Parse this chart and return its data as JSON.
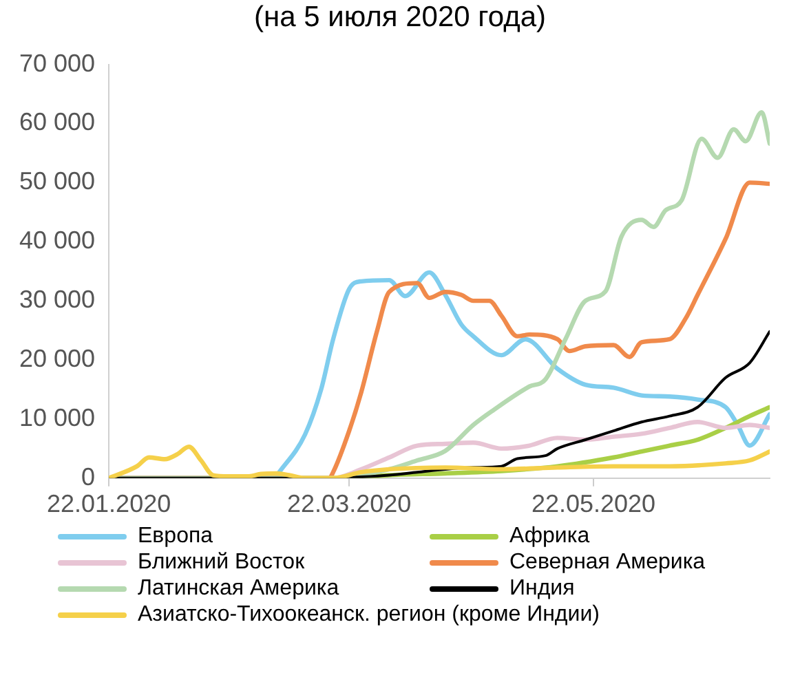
{
  "chart_data": {
    "type": "line",
    "title": "(на 5 июля 2020 года)",
    "xlim": [
      "2020-01-22",
      "2020-07-05"
    ],
    "xticks": [
      {
        "value": "2020-01-22",
        "label": "22.01.2020"
      },
      {
        "value": "2020-03-22",
        "label": "22.03.2020"
      },
      {
        "value": "2020-05-22",
        "label": "22.05.2020"
      }
    ],
    "ylim": [
      0,
      70000
    ],
    "yticks": [
      {
        "value": 0,
        "label": "0"
      },
      {
        "value": 10000,
        "label": "10 000"
      },
      {
        "value": 20000,
        "label": "20 000"
      },
      {
        "value": 30000,
        "label": "30 000"
      },
      {
        "value": 40000,
        "label": "40 000"
      },
      {
        "value": 50000,
        "label": "50 000"
      },
      {
        "value": 60000,
        "label": "60 000"
      },
      {
        "value": 70000,
        "label": "70 000"
      }
    ],
    "grid": false,
    "legend": "bottom",
    "marker": "none",
    "line_style": "solid",
    "series": [
      {
        "name": "Европа",
        "color": "#7fcdee",
        "x": [
          "2020-03-04",
          "2020-03-11",
          "2020-03-15",
          "2020-03-18",
          "2020-03-22",
          "2020-03-25",
          "2020-04-01",
          "2020-04-05",
          "2020-04-11",
          "2020-04-15",
          "2020-04-19",
          "2020-04-22",
          "2020-04-29",
          "2020-05-05",
          "2020-05-13",
          "2020-05-20",
          "2020-05-27",
          "2020-06-03",
          "2020-06-10",
          "2020-06-17",
          "2020-06-24",
          "2020-06-27",
          "2020-06-30",
          "2020-07-05"
        ],
        "values": [
          500,
          7400,
          15000,
          23500,
          32000,
          33300,
          33500,
          30800,
          34800,
          31000,
          26000,
          24000,
          20800,
          23500,
          18500,
          15800,
          15300,
          14000,
          13800,
          13300,
          12000,
          9000,
          5500,
          10800
        ]
      },
      {
        "name": "Африка",
        "color": "#a9cf46",
        "x": [
          "2020-01-22",
          "2020-03-22",
          "2020-04-01",
          "2020-04-15",
          "2020-04-29",
          "2020-05-13",
          "2020-05-27",
          "2020-06-03",
          "2020-06-10",
          "2020-06-17",
          "2020-06-24",
          "2020-06-30",
          "2020-07-05"
        ],
        "values": [
          0,
          0,
          500,
          800,
          1200,
          2000,
          3500,
          4500,
          5500,
          6500,
          8500,
          10500,
          12000
        ]
      },
      {
        "name": "Ближний Восток",
        "color": "#e8c4d4",
        "x": [
          "2020-01-22",
          "2020-03-18",
          "2020-03-25",
          "2020-04-01",
          "2020-04-08",
          "2020-04-15",
          "2020-04-22",
          "2020-04-29",
          "2020-05-06",
          "2020-05-13",
          "2020-05-20",
          "2020-05-27",
          "2020-06-03",
          "2020-06-10",
          "2020-06-17",
          "2020-06-24",
          "2020-06-30",
          "2020-07-05"
        ],
        "values": [
          0,
          0,
          1500,
          3500,
          5500,
          5800,
          6000,
          5000,
          5500,
          6800,
          6500,
          7000,
          7500,
          8500,
          9500,
          8500,
          9000,
          8500
        ]
      },
      {
        "name": "Северная Америка",
        "color": "#f08a4b",
        "x": [
          "2020-01-22",
          "2020-03-17",
          "2020-03-18",
          "2020-03-22",
          "2020-03-25",
          "2020-03-29",
          "2020-04-01",
          "2020-04-08",
          "2020-04-11",
          "2020-04-15",
          "2020-04-19",
          "2020-04-22",
          "2020-04-26",
          "2020-04-29",
          "2020-05-03",
          "2020-05-06",
          "2020-05-13",
          "2020-05-16",
          "2020-05-20",
          "2020-05-27",
          "2020-05-31",
          "2020-06-03",
          "2020-06-10",
          "2020-06-14",
          "2020-06-17",
          "2020-06-24",
          "2020-06-30",
          "2020-07-05"
        ],
        "values": [
          0,
          0,
          1000,
          8000,
          14500,
          25000,
          31500,
          33000,
          30500,
          31500,
          31000,
          30000,
          30000,
          27500,
          24000,
          24300,
          23500,
          21500,
          22300,
          22500,
          20500,
          23000,
          23500,
          27000,
          31000,
          40500,
          50000,
          49800
        ]
      },
      {
        "name": "Латинская Америка",
        "color": "#b5d9b0",
        "x": [
          "2020-01-22",
          "2020-03-18",
          "2020-03-25",
          "2020-04-01",
          "2020-04-08",
          "2020-04-15",
          "2020-04-22",
          "2020-04-27",
          "2020-05-06",
          "2020-05-10",
          "2020-05-15",
          "2020-05-20",
          "2020-05-25",
          "2020-05-29",
          "2020-06-03",
          "2020-06-06",
          "2020-06-09",
          "2020-06-13",
          "2020-06-18",
          "2020-06-22",
          "2020-06-26",
          "2020-06-29",
          "2020-07-03",
          "2020-07-05"
        ],
        "values": [
          0,
          0,
          500,
          1500,
          3000,
          4600,
          9000,
          11500,
          15500,
          16700,
          23500,
          30000,
          31600,
          40900,
          43700,
          42500,
          45300,
          47000,
          57400,
          54200,
          59000,
          57000,
          61900,
          56600
        ]
      },
      {
        "name": "Индия",
        "color": "#000000",
        "x": [
          "2020-01-22",
          "2020-03-18",
          "2020-03-25",
          "2020-04-01",
          "2020-04-08",
          "2020-04-15",
          "2020-04-22",
          "2020-04-29",
          "2020-05-03",
          "2020-05-10",
          "2020-05-13",
          "2020-05-20",
          "2020-05-27",
          "2020-06-03",
          "2020-06-10",
          "2020-06-17",
          "2020-06-24",
          "2020-06-30",
          "2020-07-05"
        ],
        "values": [
          0,
          0,
          200,
          500,
          1000,
          1500,
          1800,
          2000,
          3300,
          3800,
          5000,
          6500,
          8000,
          9500,
          10500,
          12000,
          17000,
          19500,
          24800
        ]
      },
      {
        "name": "Азиатско-Тихоокеанск. регион (кроме Индии)",
        "color": "#f5d04a",
        "x": [
          "2020-01-22",
          "2020-01-29",
          "2020-02-01",
          "2020-02-05",
          "2020-02-08",
          "2020-02-11",
          "2020-02-14",
          "2020-02-17",
          "2020-02-21",
          "2020-02-26",
          "2020-02-29",
          "2020-03-04",
          "2020-03-07",
          "2020-03-11",
          "2020-03-18",
          "2020-03-25",
          "2020-04-01",
          "2020-04-15",
          "2020-04-29",
          "2020-05-13",
          "2020-05-27",
          "2020-06-10",
          "2020-06-24",
          "2020-06-30",
          "2020-07-05"
        ],
        "values": [
          0,
          2000,
          3500,
          3200,
          4000,
          5300,
          3000,
          500,
          300,
          300,
          700,
          800,
          500,
          0,
          0,
          1000,
          1500,
          1800,
          1500,
          1800,
          2000,
          2000,
          2500,
          3000,
          4500
        ]
      }
    ]
  }
}
